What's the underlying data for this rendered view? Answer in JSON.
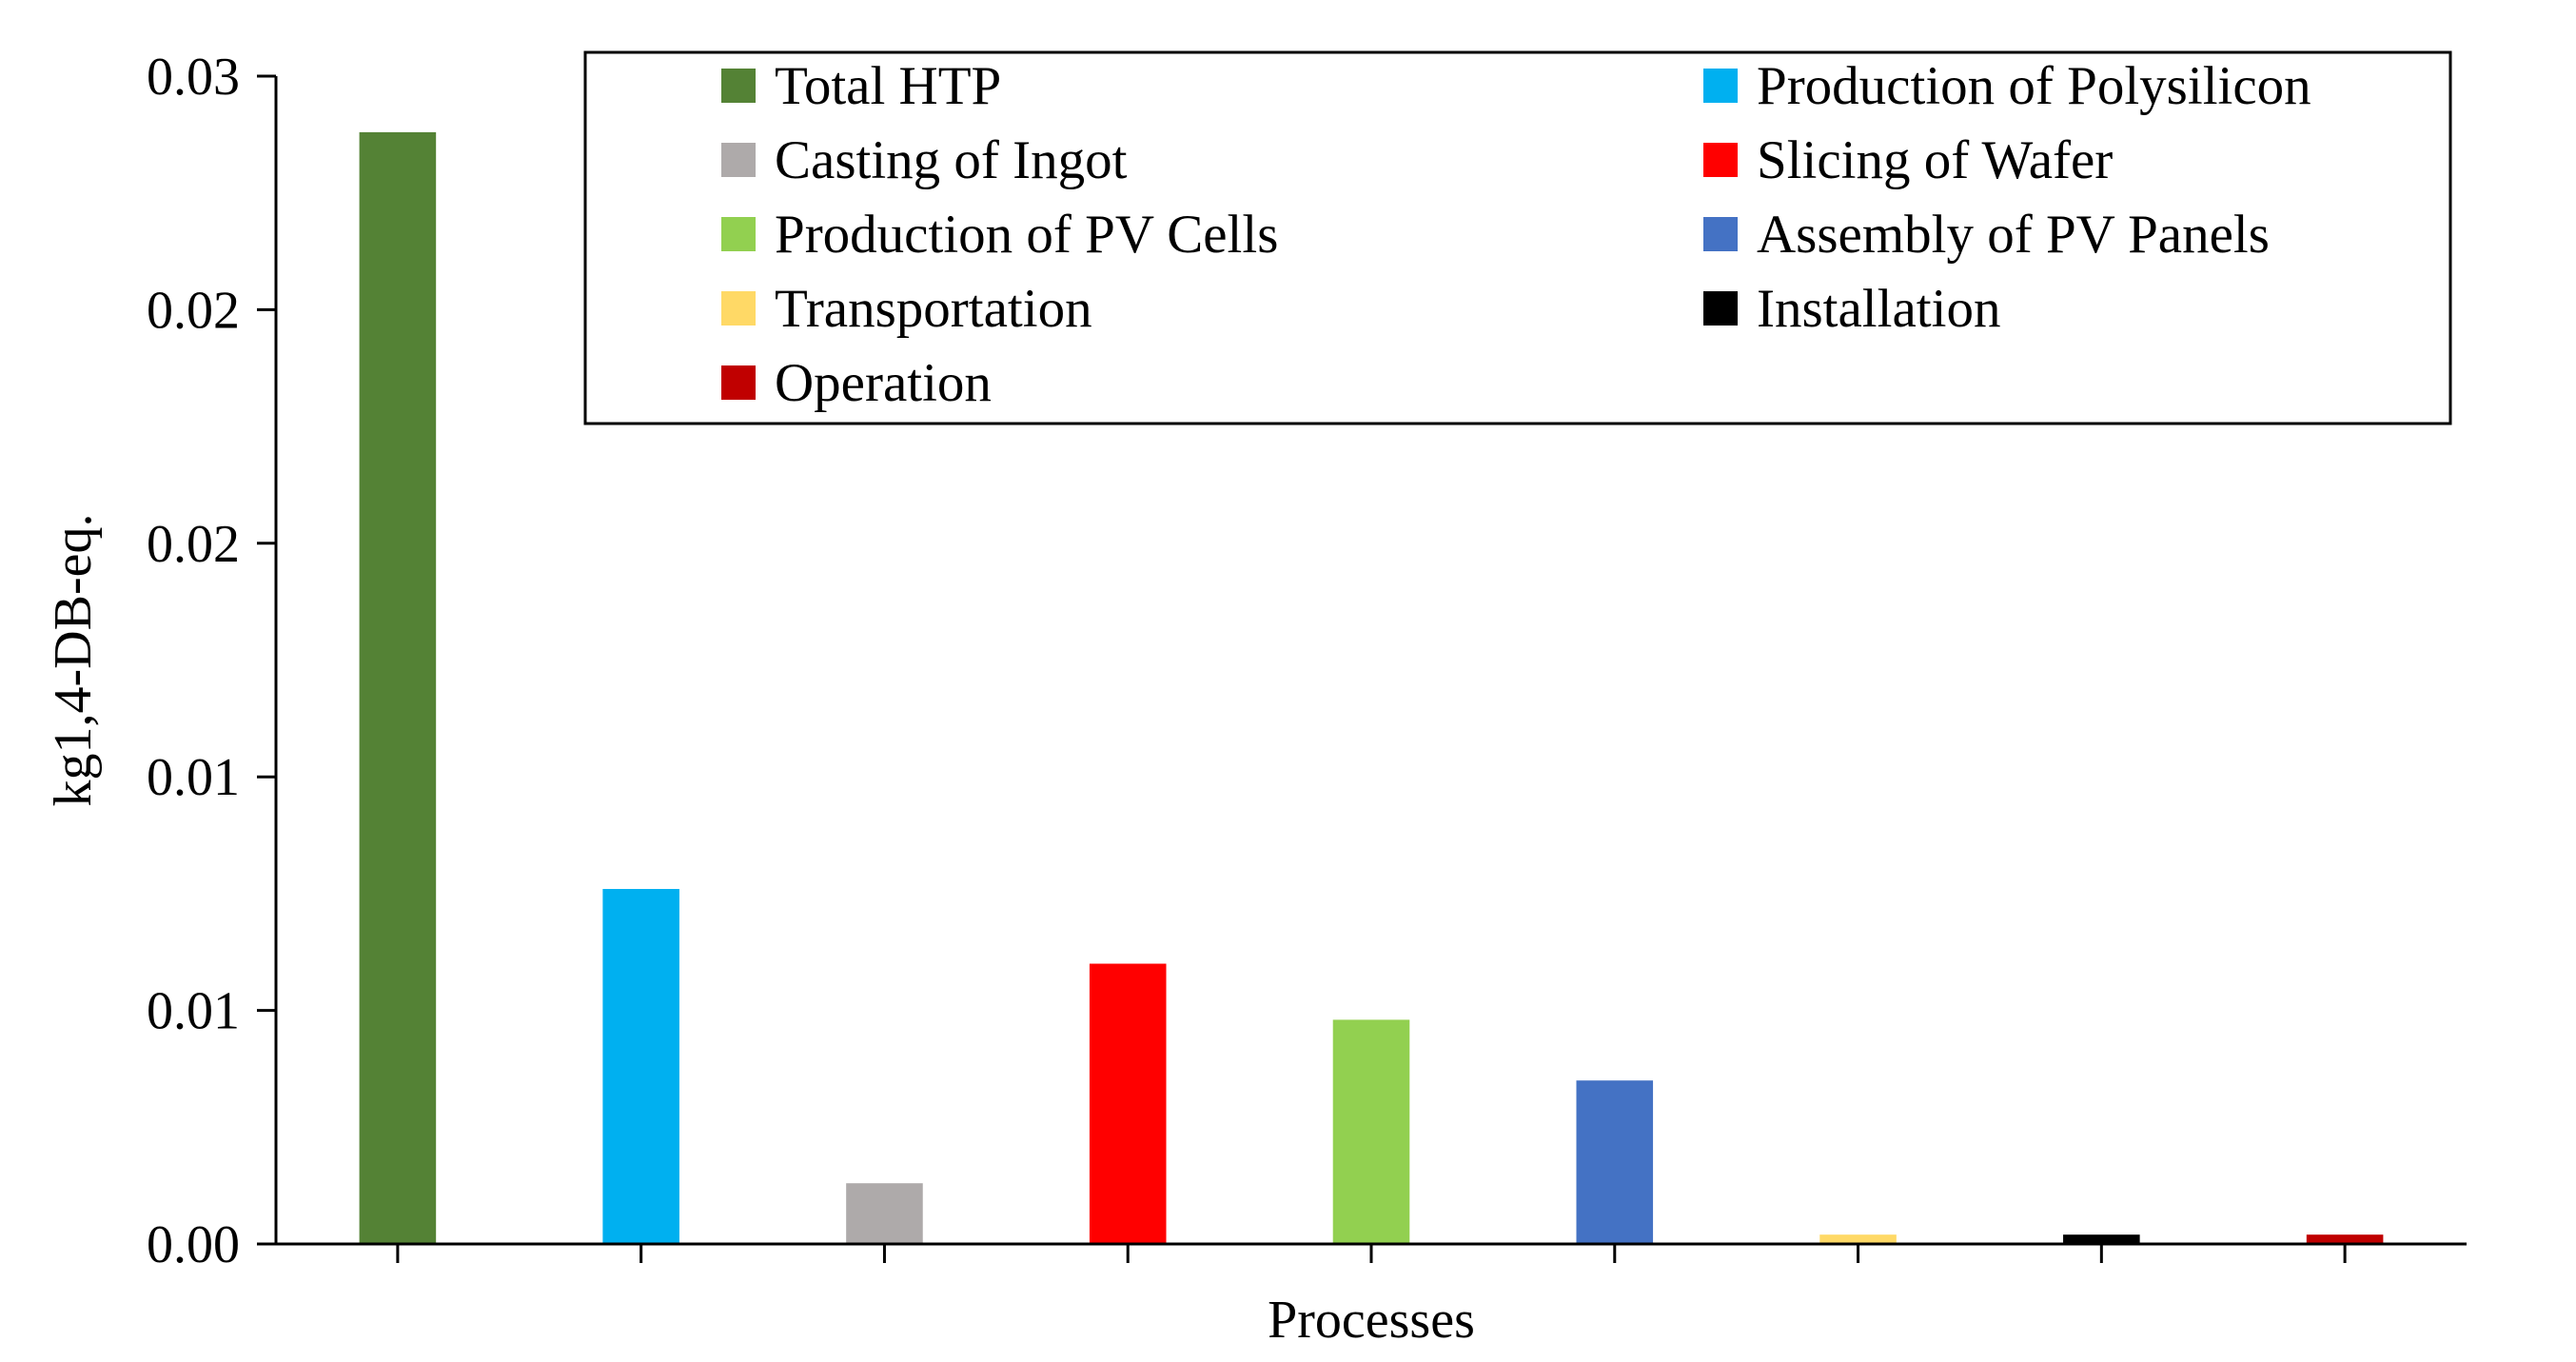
{
  "chart_data": {
    "type": "bar",
    "title": "",
    "xlabel": "Processes",
    "ylabel": "kg1,4-DB-eq.",
    "ylim": [
      0,
      0.025
    ],
    "ytick_values": [
      0,
      0.005,
      0.01,
      0.015,
      0.02,
      0.025
    ],
    "ytick_labels": [
      "0.00",
      "0.01",
      "0.01",
      "0.02",
      "0.02",
      "0.03"
    ],
    "grid": false,
    "legend_position": "top-right",
    "categories": [
      "Total HTP",
      "Production of Polysilicon",
      "Casting of Ingot",
      "Slicing of Wafer",
      "Production of PV Cells",
      "Assembly of PV Panels",
      "Transportation",
      "Installation",
      "Operation"
    ],
    "values": [
      0.0238,
      0.0076,
      0.0013,
      0.006,
      0.0048,
      0.0035,
      0.0002,
      0.0002,
      0.0002
    ],
    "colors": [
      "#548235",
      "#00b0f0",
      "#aeaaaa",
      "#ff0000",
      "#92d050",
      "#4472c4",
      "#ffd966",
      "#000000",
      "#c00000"
    ]
  }
}
